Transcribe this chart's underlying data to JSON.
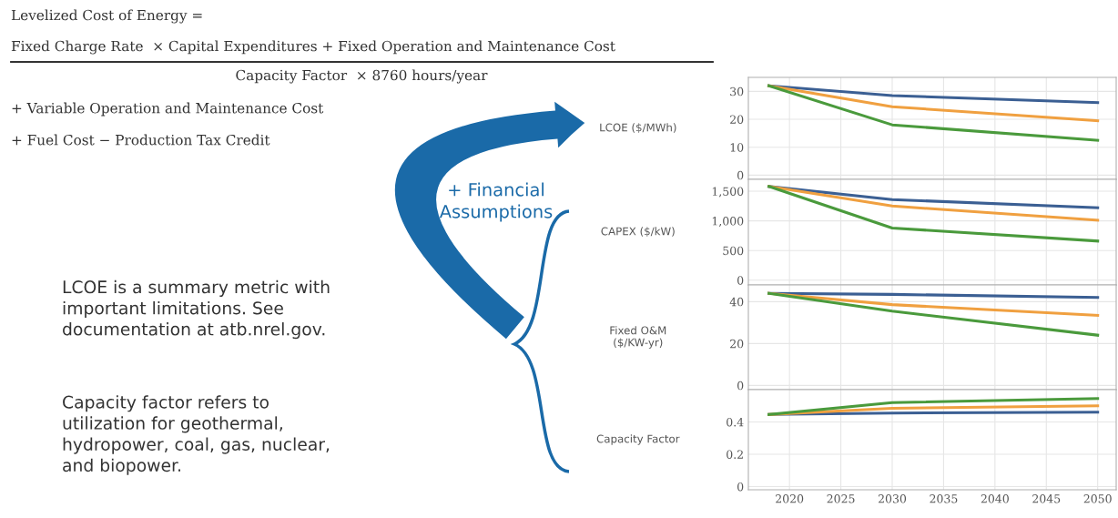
{
  "chart_data": [
    {
      "type": "other",
      "annotations": [
        "Levelized Cost of Energy =",
        "Fixed Charge Rate  × Capital Expenditures + Fixed Operation and Maintenance Cost",
        "Capacity Factor  × 8760 hours/year",
        "+ Variable Operation and Maintenance Cost",
        "+ Fuel Cost − Production Tax Credit",
        "+ Financial\nAssumptions",
        "LCOE is a summary metric with\nimportant limitations. See\ndocumentation at atb.nrel.gov.",
        "Capacity factor refers to\nutilization for geothermal,\nhydropower, coal, gas, nuclear,\nand biopower."
      ]
    },
    {
      "type": "line",
      "ylabel": "LCOE ($/MWh)",
      "x": [
        2018,
        2030,
        2050
      ],
      "xlim": [
        2016,
        2051.8
      ],
      "ylim": [
        -1.5,
        35
      ],
      "yticks": [
        0,
        10,
        20,
        30
      ],
      "grid": true,
      "tick_labels": "y",
      "series": [
        {
          "color": "#3b5f93",
          "values": [
            32,
            28.5,
            26
          ]
        },
        {
          "color": "#f0a040",
          "values": [
            32,
            24.5,
            19.5
          ]
        },
        {
          "color": "#4a9a3c",
          "values": [
            32,
            18,
            12.5
          ]
        }
      ]
    },
    {
      "type": "line",
      "ylabel": "CAPEX ($/kW)",
      "x": [
        2018,
        2030,
        2050
      ],
      "xlim": [
        2016,
        2051.8
      ],
      "ylim": [
        -80,
        1700
      ],
      "yticks": [
        {
          "value": 0,
          "label": "0"
        },
        {
          "value": 500,
          "label": "500"
        },
        {
          "value": 1000,
          "label": "1,000"
        },
        {
          "value": 1500,
          "label": "1,500"
        }
      ],
      "grid": true,
      "tick_labels": "y",
      "series": [
        {
          "color": "#3b5f93",
          "values": [
            1580,
            1360,
            1220
          ]
        },
        {
          "color": "#f0a040",
          "values": [
            1580,
            1250,
            1010
          ]
        },
        {
          "color": "#4a9a3c",
          "values": [
            1580,
            880,
            660
          ]
        }
      ]
    },
    {
      "type": "line",
      "ylabel": "Fixed O&M\n($/KW-yr)",
      "x": [
        2018,
        2030,
        2050
      ],
      "xlim": [
        2016,
        2051.8
      ],
      "ylim": [
        -2,
        48
      ],
      "yticks": [
        0,
        20,
        40
      ],
      "grid": true,
      "tick_labels": "y",
      "series": [
        {
          "color": "#3b5f93",
          "values": [
            44,
            43.5,
            42
          ]
        },
        {
          "color": "#f0a040",
          "values": [
            44,
            38.6,
            33.5
          ]
        },
        {
          "color": "#4a9a3c",
          "values": [
            44,
            35.5,
            24
          ]
        }
      ]
    },
    {
      "type": "line",
      "ylabel": "Capacity Factor",
      "x": [
        2018,
        2030,
        2050
      ],
      "xlim": [
        2016,
        2051.8
      ],
      "ylim": [
        -0.02,
        0.6
      ],
      "yticks": [
        0,
        0.2,
        0.4
      ],
      "xticks": [
        2020,
        2025,
        2030,
        2035,
        2040,
        2045,
        2050
      ],
      "grid": true,
      "series": [
        {
          "color": "#3b5f93",
          "values": [
            0.446,
            0.455,
            0.46
          ]
        },
        {
          "color": "#f0a040",
          "values": [
            0.446,
            0.485,
            0.5
          ]
        },
        {
          "color": "#4a9a3c",
          "values": [
            0.446,
            0.52,
            0.545
          ]
        }
      ]
    }
  ]
}
